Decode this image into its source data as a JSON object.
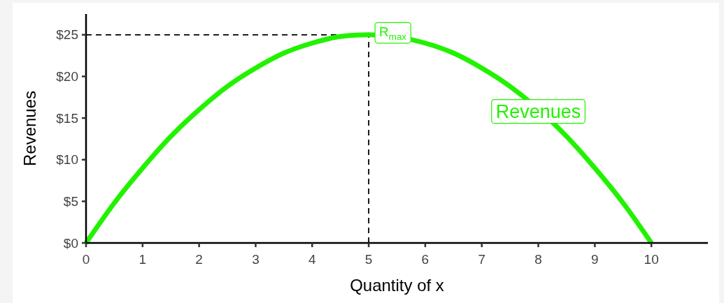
{
  "chart_data": {
    "type": "line",
    "xlabel": "Quantity of x",
    "ylabel": "Revenues",
    "x": [
      0,
      0.5,
      1,
      1.5,
      2,
      2.5,
      3,
      3.5,
      4,
      4.5,
      5,
      6,
      6.5,
      7,
      7.5,
      8.5,
      9,
      9.5,
      10
    ],
    "series": [
      {
        "name": "Revenues",
        "color": "#22f200",
        "values": [
          0,
          4.8,
          9,
          12.8,
          16,
          18.8,
          21,
          22.8,
          24,
          24.8,
          25,
          24,
          22.8,
          21,
          18.8,
          12.8,
          9,
          4.8,
          0
        ]
      }
    ],
    "xlim": [
      0,
      11
    ],
    "xticks": [
      0,
      1,
      2,
      3,
      4,
      5,
      6,
      7,
      8,
      9,
      10
    ],
    "ylim": [
      0,
      27.5
    ],
    "yticks": [
      {
        "value": 0,
        "label": "$0"
      },
      {
        "value": 5,
        "label": "$5"
      },
      {
        "value": 10,
        "label": "$10"
      },
      {
        "value": 15,
        "label": "$15"
      },
      {
        "value": 20,
        "label": "$20"
      },
      {
        "value": 25,
        "label": "$25"
      }
    ],
    "ref_lines": [
      {
        "axis": "y",
        "value": 25,
        "color": "#000000",
        "line_style": "dashed"
      },
      {
        "axis": "x",
        "value": 5,
        "color": "#000000",
        "line_style": "dashed"
      }
    ],
    "annotations": [
      {
        "text": "R$_{max}$",
        "x": 5,
        "y": 25
      }
    ]
  }
}
